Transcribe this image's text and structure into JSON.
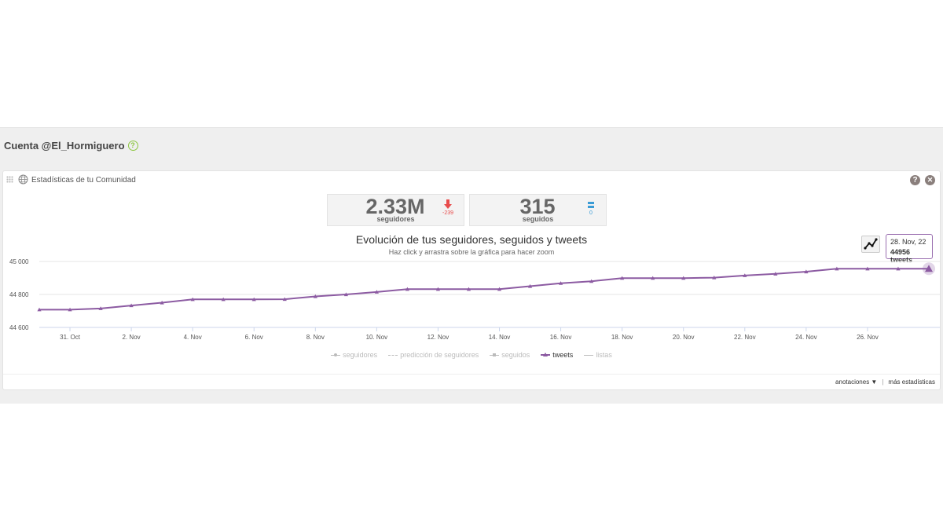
{
  "account": {
    "title": "Cuenta @El_Hormiguero",
    "help_glyph": "?"
  },
  "panel": {
    "title": "Estadísticas de tu Comunidad",
    "help_glyph": "?",
    "close_glyph": "✕"
  },
  "stats": {
    "followers": {
      "value": "2.33M",
      "label": "seguidores",
      "delta": "-239",
      "trend": "down",
      "trend_color": "#e84c4c"
    },
    "following": {
      "value": "315",
      "label": "seguidos",
      "delta": "0",
      "trend": "equal",
      "trend_color": "#3a9bd5"
    }
  },
  "chart_header": {
    "title": "Evolución de tus seguidores, seguidos y tweets",
    "subtitle": "Haz click y arrastra sobre la gráfica para hacer zoom"
  },
  "tooltip": {
    "date": "28. Nov, 22",
    "value": "44956 tweets"
  },
  "chart_data": {
    "type": "line",
    "x": [
      "30. Oct",
      "31. Oct",
      "1. Nov",
      "2. Nov",
      "3. Nov",
      "4. Nov",
      "5. Nov",
      "6. Nov",
      "7. Nov",
      "8. Nov",
      "9. Nov",
      "10. Nov",
      "11. Nov",
      "12. Nov",
      "13. Nov",
      "14. Nov",
      "15. Nov",
      "16. Nov",
      "17. Nov",
      "18. Nov",
      "19. Nov",
      "20. Nov",
      "21. Nov",
      "22. Nov",
      "23. Nov",
      "24. Nov",
      "25. Nov",
      "26. Nov",
      "27. Nov",
      "28. Nov"
    ],
    "x_tick_labels": [
      "31. Oct",
      "2. Nov",
      "4. Nov",
      "6. Nov",
      "8. Nov",
      "10. Nov",
      "12. Nov",
      "14. Nov",
      "16. Nov",
      "18. Nov",
      "20. Nov",
      "22. Nov",
      "24. Nov",
      "26. Nov"
    ],
    "series": [
      {
        "name": "tweets",
        "color": "#8c5ba2",
        "values": [
          44708,
          44708,
          44715,
          44733,
          44750,
          44770,
          44770,
          44770,
          44771,
          44788,
          44800,
          44815,
          44832,
          44832,
          44832,
          44832,
          44850,
          44868,
          44880,
          44899,
          44899,
          44899,
          44902,
          44915,
          44925,
          44938,
          44956,
          44956,
          44956,
          44956
        ]
      }
    ],
    "y_ticks": [
      "44 600",
      "44 800",
      "45 000"
    ],
    "ylim": [
      44600,
      45000
    ],
    "grid": true,
    "legend": {
      "position": "bottom-center",
      "items": [
        {
          "label": "seguidores",
          "marker": "dot",
          "active": false
        },
        {
          "label": "predicción de seguidores",
          "marker": "dash",
          "active": false
        },
        {
          "label": "seguidos",
          "marker": "square",
          "active": false
        },
        {
          "label": "tweets",
          "marker": "triangle",
          "active": true
        },
        {
          "label": "listas",
          "marker": "cross",
          "active": false
        }
      ]
    }
  },
  "footer": {
    "annotations": "anotaciones ▼",
    "separator": "|",
    "more_stats": "más estadísticas"
  }
}
